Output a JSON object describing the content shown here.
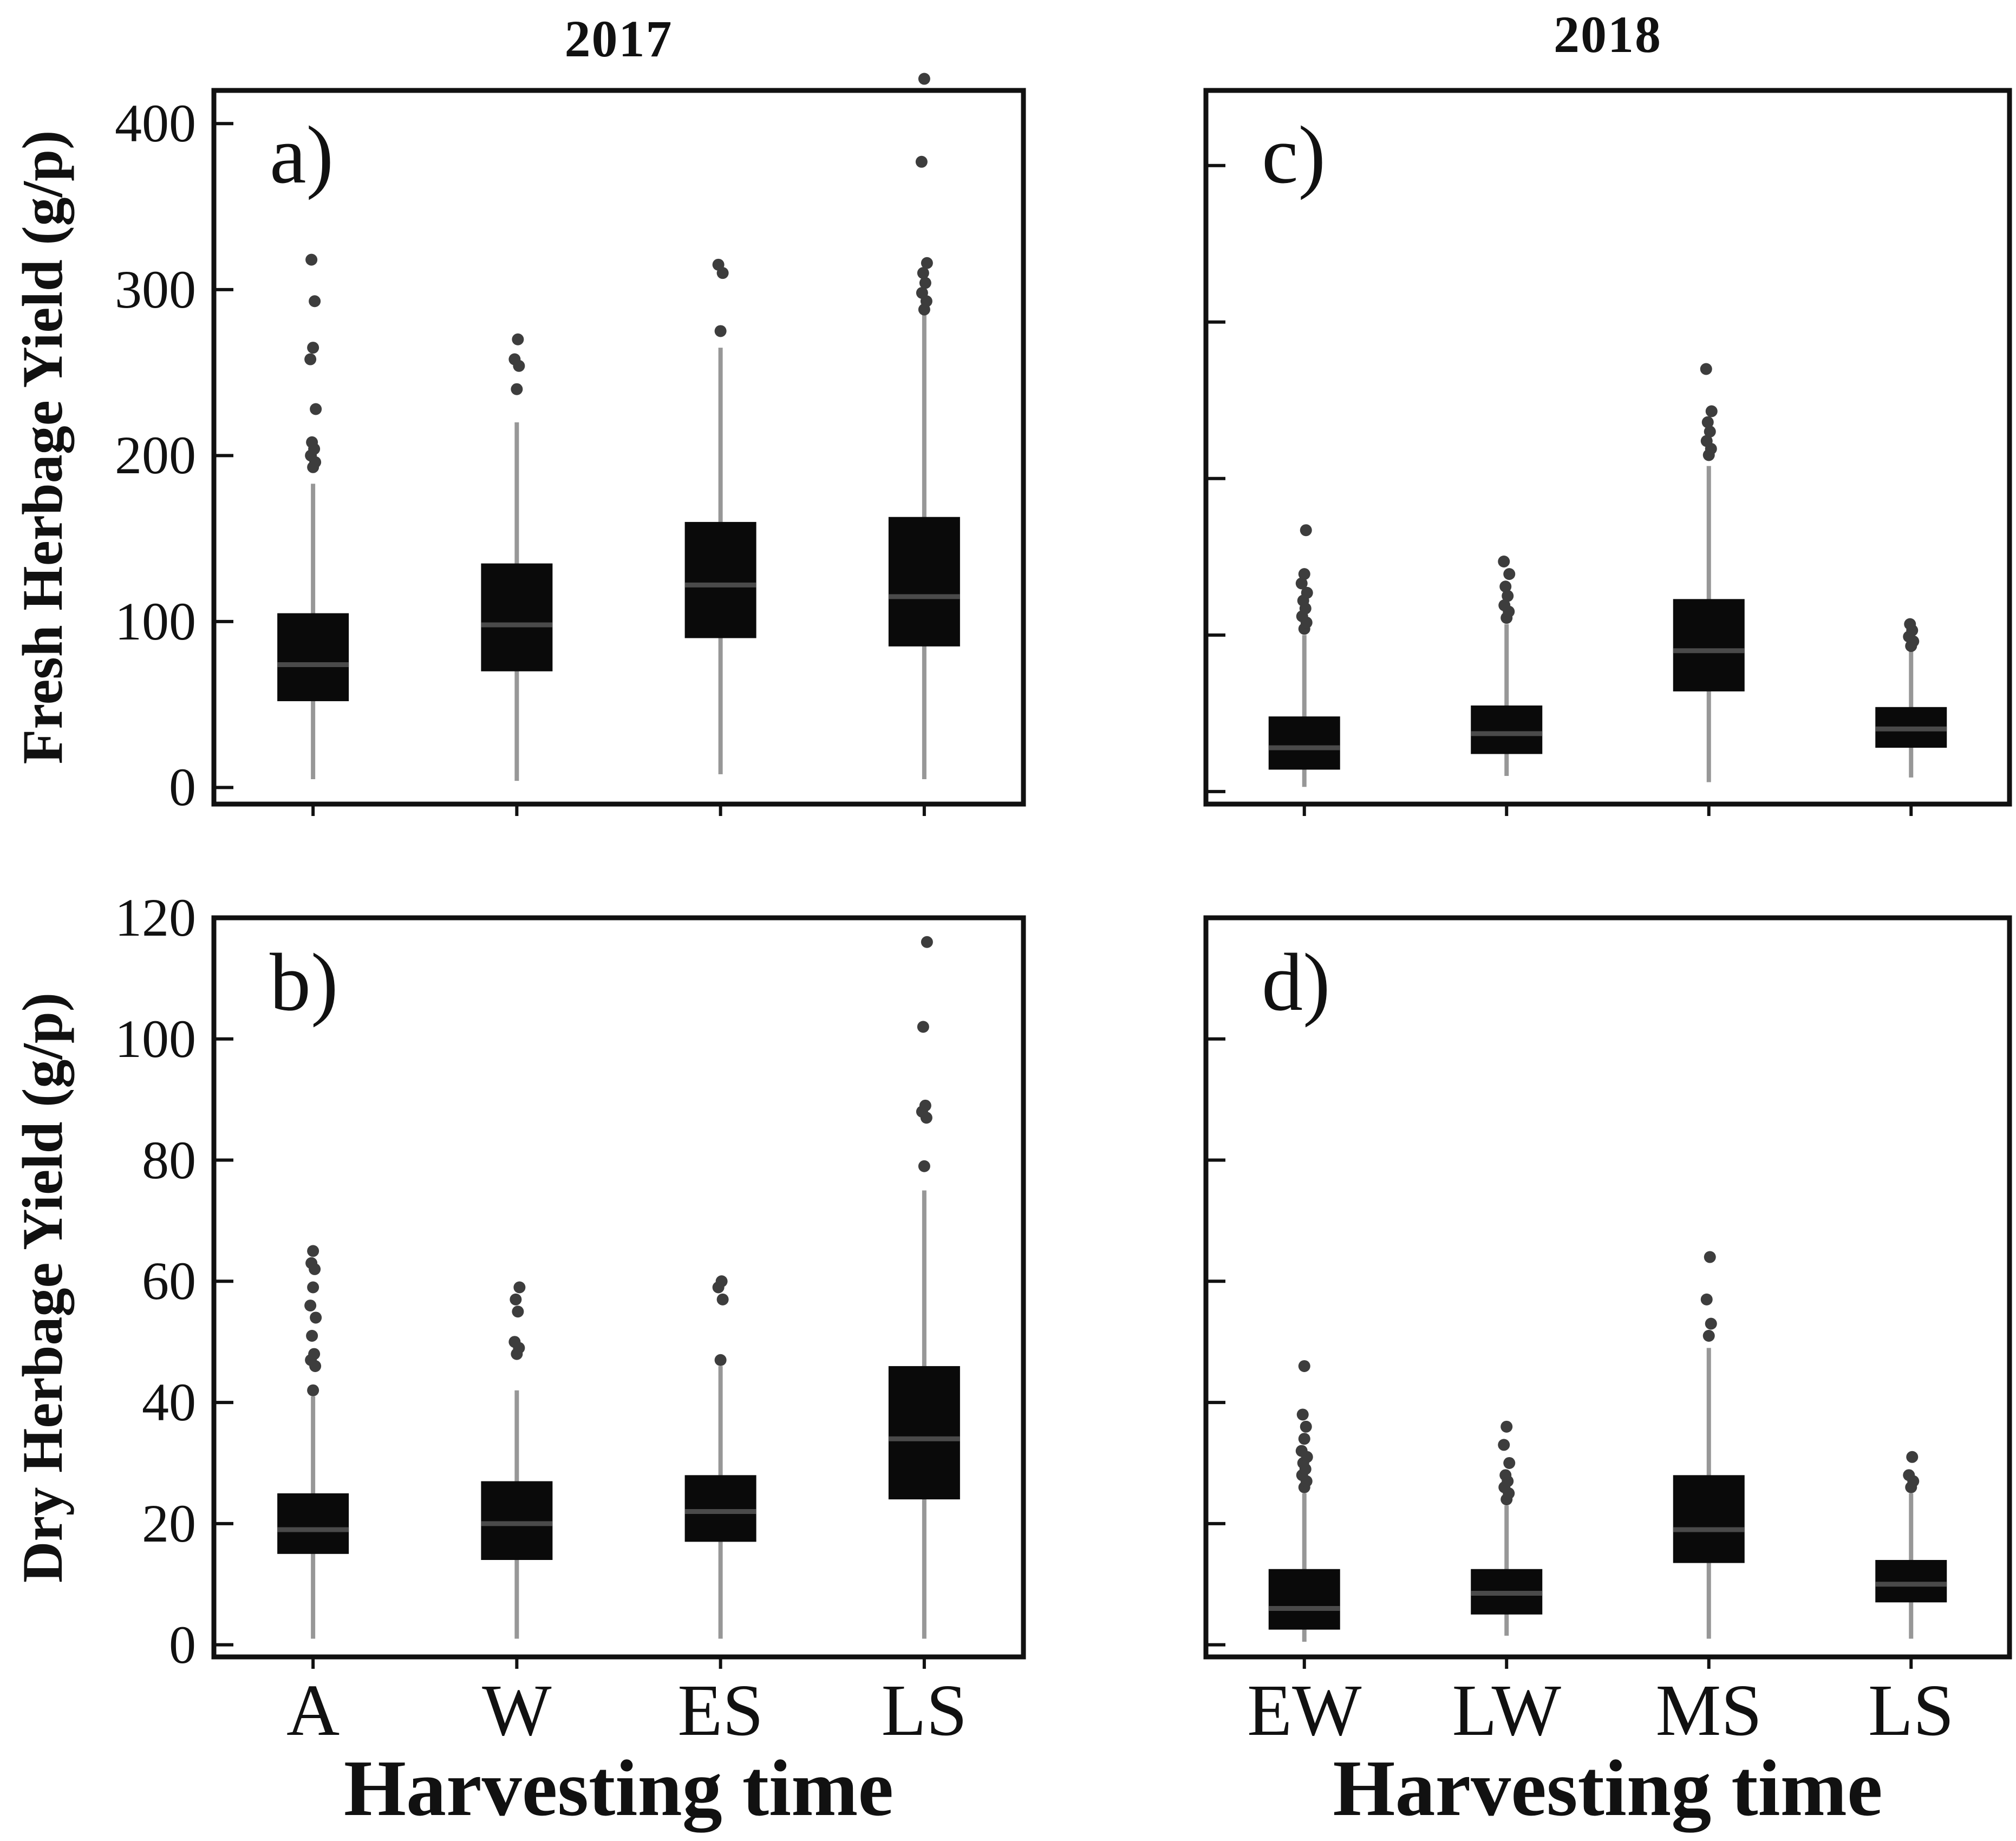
{
  "figure": {
    "year_titles": [
      "2017",
      "2018"
    ],
    "y_axis_titles": [
      "Fresh Herbage Yield (g/p)",
      "Dry Herbage Yield (g/p)"
    ],
    "x_axis_title": "Harvesting time",
    "colors": {
      "background": "#ffffff",
      "frame": "#111111",
      "box_fill": "#0a0a0a",
      "median_line": "#4a4a4a",
      "whisker": "#979797",
      "outlier": "#3d3d3d",
      "text": "#111111"
    }
  },
  "chart_data": [
    {
      "type": "box",
      "panel_letter": "a)",
      "year": "2017",
      "ylabel": "Fresh Herbage Yield (g/p)",
      "xlabel": "",
      "categories": [
        "A",
        "W",
        "ES",
        "LS"
      ],
      "ylim": [
        -10,
        420
      ],
      "yticks": [
        0,
        100,
        200,
        300,
        400
      ],
      "show_ytick_labels": true,
      "show_xtick_labels": false,
      "boxes": [
        {
          "category": "A",
          "whisker_low": 5,
          "q1": 52,
          "median": 74,
          "q3": 105,
          "whisker_high": 183,
          "outliers": [
            193,
            196,
            200,
            204,
            208,
            228,
            258,
            265,
            293,
            318
          ]
        },
        {
          "category": "W",
          "whisker_low": 4,
          "q1": 70,
          "median": 98,
          "q3": 135,
          "whisker_high": 220,
          "outliers": [
            240,
            254,
            258,
            270
          ]
        },
        {
          "category": "ES",
          "whisker_low": 8,
          "q1": 90,
          "median": 122,
          "q3": 160,
          "whisker_high": 265,
          "outliers": [
            275,
            310,
            315
          ]
        },
        {
          "category": "LS",
          "whisker_low": 5,
          "q1": 85,
          "median": 115,
          "q3": 163,
          "whisker_high": 285,
          "outliers": [
            288,
            293,
            298,
            304,
            310,
            316,
            377,
            427
          ]
        }
      ]
    },
    {
      "type": "box",
      "panel_letter": "c)",
      "year": "2018",
      "ylabel": "",
      "xlabel": "",
      "categories": [
        "EW",
        "LW",
        "MS",
        "LS"
      ],
      "ylim": [
        -8,
        448
      ],
      "yticks": [
        0,
        100,
        200,
        300,
        400
      ],
      "show_ytick_labels": false,
      "show_xtick_labels": false,
      "boxes": [
        {
          "category": "EW",
          "whisker_low": 3,
          "q1": 14,
          "median": 28,
          "q3": 48,
          "whisker_high": 100,
          "outliers": [
            104,
            108,
            112,
            117,
            122,
            127,
            133,
            139,
            167
          ]
        },
        {
          "category": "LW",
          "whisker_low": 10,
          "q1": 24,
          "median": 37,
          "q3": 55,
          "whisker_high": 107,
          "outliers": [
            111,
            115,
            119,
            125,
            131,
            139,
            147
          ]
        },
        {
          "category": "MS",
          "whisker_low": 6,
          "q1": 64,
          "median": 90,
          "q3": 123,
          "whisker_high": 208,
          "outliers": [
            215,
            219,
            224,
            230,
            236,
            243,
            270
          ]
        },
        {
          "category": "LS",
          "whisker_low": 9,
          "q1": 28,
          "median": 40,
          "q3": 54,
          "whisker_high": 90,
          "outliers": [
            93,
            96,
            99,
            103,
            107
          ]
        }
      ]
    },
    {
      "type": "box",
      "panel_letter": "b)",
      "year": "2017",
      "ylabel": "Dry Herbage Yield (g/p)",
      "xlabel": "Harvesting time",
      "categories": [
        "A",
        "W",
        "ES",
        "LS"
      ],
      "ylim": [
        -2,
        120
      ],
      "yticks": [
        0,
        20,
        40,
        60,
        80,
        100,
        120
      ],
      "show_ytick_labels": true,
      "show_xtick_labels": true,
      "boxes": [
        {
          "category": "A",
          "whisker_low": 1,
          "q1": 15,
          "median": 19,
          "q3": 25,
          "whisker_high": 41,
          "outliers": [
            42,
            46,
            47,
            48,
            51,
            54,
            56,
            59,
            62,
            63,
            65
          ]
        },
        {
          "category": "W",
          "whisker_low": 1,
          "q1": 14,
          "median": 20,
          "q3": 27,
          "whisker_high": 42,
          "outliers": [
            48,
            49,
            50,
            55,
            57,
            59
          ]
        },
        {
          "category": "ES",
          "whisker_low": 1,
          "q1": 17,
          "median": 22,
          "q3": 28,
          "whisker_high": 46,
          "outliers": [
            47,
            57,
            59,
            60
          ]
        },
        {
          "category": "LS",
          "whisker_low": 1,
          "q1": 24,
          "median": 34,
          "q3": 46,
          "whisker_high": 75,
          "outliers": [
            79,
            87,
            88,
            89,
            102,
            116
          ]
        }
      ]
    },
    {
      "type": "box",
      "panel_letter": "d)",
      "year": "2018",
      "ylabel": "",
      "xlabel": "Harvesting time",
      "categories": [
        "EW",
        "LW",
        "MS",
        "LS"
      ],
      "ylim": [
        -2,
        120
      ],
      "yticks": [
        0,
        20,
        40,
        60,
        80,
        100,
        120
      ],
      "show_ytick_labels": false,
      "show_xtick_labels": true,
      "boxes": [
        {
          "category": "EW",
          "whisker_low": 0.5,
          "q1": 2.5,
          "median": 6,
          "q3": 12.5,
          "whisker_high": 25,
          "outliers": [
            26,
            27,
            28,
            29,
            30,
            31,
            32,
            34,
            36,
            38,
            46
          ]
        },
        {
          "category": "LW",
          "whisker_low": 1.5,
          "q1": 5,
          "median": 8.5,
          "q3": 12.5,
          "whisker_high": 23,
          "outliers": [
            24,
            25,
            26,
            27,
            28,
            30,
            33,
            36
          ]
        },
        {
          "category": "MS",
          "whisker_low": 1,
          "q1": 13.5,
          "median": 19,
          "q3": 28,
          "whisker_high": 49,
          "outliers": [
            51,
            53,
            57,
            64
          ]
        },
        {
          "category": "LS",
          "whisker_low": 1,
          "q1": 7,
          "median": 10,
          "q3": 14,
          "whisker_high": 25,
          "outliers": [
            26,
            27,
            28,
            31
          ]
        }
      ]
    }
  ]
}
